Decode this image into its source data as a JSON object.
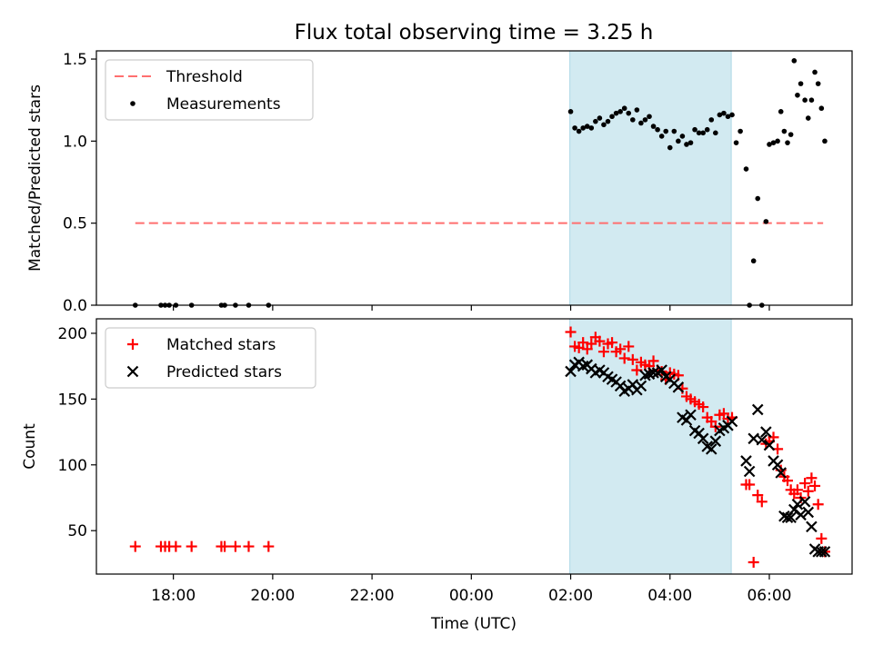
{
  "figure": {
    "title": "Flux total observing time = 3.25 h",
    "xlabel": "Time (UTC)",
    "x_tick_labels": [
      "18:00",
      "20:00",
      "22:00",
      "00:00",
      "02:00",
      "04:00",
      "06:00"
    ]
  },
  "chart_data": [
    {
      "type": "scatter",
      "panel": "top",
      "ylabel": "Matched/Predicted stars",
      "xlim": [
        "16:27",
        "07:40"
      ],
      "ylim": [
        0,
        1.55
      ],
      "y_ticks": [
        0.0,
        0.5,
        1.0,
        1.5
      ],
      "legend": {
        "placement": "top-left",
        "entries": [
          "Threshold",
          "Measurements"
        ]
      },
      "shaded_interval": {
        "from": "01:59",
        "to": "05:14",
        "color": "#add8e6"
      },
      "threshold": {
        "name": "Threshold",
        "y": 0.5,
        "x_from": "17:14",
        "x_to": "07:05",
        "color": "#ff6f6f",
        "style": "dashed"
      },
      "series": [
        {
          "name": "Measurements",
          "color": "#000000",
          "points": [
            [
              "17:14",
              0
            ],
            [
              "17:45",
              0
            ],
            [
              "17:50",
              0
            ],
            [
              "17:55",
              0
            ],
            [
              "18:03",
              0
            ],
            [
              "18:22",
              0
            ],
            [
              "18:58",
              0
            ],
            [
              "19:02",
              0
            ],
            [
              "19:15",
              0
            ],
            [
              "19:31",
              0
            ],
            [
              "19:55",
              0
            ],
            [
              "02:00",
              1.18
            ],
            [
              "02:05",
              1.08
            ],
            [
              "02:10",
              1.06
            ],
            [
              "02:15",
              1.08
            ],
            [
              "02:20",
              1.09
            ],
            [
              "02:25",
              1.08
            ],
            [
              "02:30",
              1.12
            ],
            [
              "02:35",
              1.14
            ],
            [
              "02:40",
              1.1
            ],
            [
              "02:45",
              1.12
            ],
            [
              "02:50",
              1.15
            ],
            [
              "02:55",
              1.17
            ],
            [
              "03:00",
              1.18
            ],
            [
              "03:05",
              1.2
            ],
            [
              "03:10",
              1.17
            ],
            [
              "03:15",
              1.13
            ],
            [
              "03:20",
              1.19
            ],
            [
              "03:25",
              1.11
            ],
            [
              "03:30",
              1.13
            ],
            [
              "03:35",
              1.15
            ],
            [
              "03:40",
              1.09
            ],
            [
              "03:45",
              1.07
            ],
            [
              "03:50",
              1.03
            ],
            [
              "03:55",
              1.06
            ],
            [
              "04:00",
              0.96
            ],
            [
              "04:05",
              1.06
            ],
            [
              "04:10",
              1.0
            ],
            [
              "04:15",
              1.03
            ],
            [
              "04:20",
              0.98
            ],
            [
              "04:25",
              0.99
            ],
            [
              "04:30",
              1.07
            ],
            [
              "04:35",
              1.05
            ],
            [
              "04:40",
              1.05
            ],
            [
              "04:45",
              1.07
            ],
            [
              "04:50",
              1.13
            ],
            [
              "04:55",
              1.05
            ],
            [
              "05:00",
              1.16
            ],
            [
              "05:05",
              1.17
            ],
            [
              "05:10",
              1.15
            ],
            [
              "05:15",
              1.16
            ],
            [
              "05:20",
              0.99
            ],
            [
              "05:25",
              1.06
            ],
            [
              "05:32",
              0.83
            ],
            [
              "05:36",
              0.0
            ],
            [
              "05:41",
              0.27
            ],
            [
              "05:46",
              0.65
            ],
            [
              "05:51",
              0.0
            ],
            [
              "05:56",
              0.51
            ],
            [
              "06:00",
              0.98
            ],
            [
              "06:05",
              0.99
            ],
            [
              "06:10",
              1.0
            ],
            [
              "06:14",
              1.18
            ],
            [
              "06:18",
              1.06
            ],
            [
              "06:22",
              0.99
            ],
            [
              "06:26",
              1.04
            ],
            [
              "06:30",
              1.49
            ],
            [
              "06:34",
              1.28
            ],
            [
              "06:38",
              1.35
            ],
            [
              "06:43",
              1.25
            ],
            [
              "06:47",
              1.14
            ],
            [
              "06:51",
              1.25
            ],
            [
              "06:55",
              1.42
            ],
            [
              "06:59",
              1.35
            ],
            [
              "07:03",
              1.2
            ],
            [
              "07:07",
              1.0
            ]
          ]
        }
      ]
    },
    {
      "type": "scatter",
      "panel": "bottom",
      "ylabel": "Count",
      "xlim": [
        "16:27",
        "07:40"
      ],
      "ylim": [
        17,
        211
      ],
      "y_ticks": [
        50,
        100,
        150,
        200
      ],
      "legend": {
        "placement": "top-left",
        "entries": [
          "Matched stars",
          "Predicted stars"
        ]
      },
      "shaded_interval": {
        "from": "01:59",
        "to": "05:14",
        "color": "#add8e6"
      },
      "series": [
        {
          "name": "Matched stars",
          "marker": "plus",
          "color": "#ff0000",
          "points": [
            [
              "17:14",
              38
            ],
            [
              "17:45",
              38
            ],
            [
              "17:50",
              38
            ],
            [
              "17:55",
              38
            ],
            [
              "18:03",
              38
            ],
            [
              "18:22",
              38
            ],
            [
              "18:58",
              38
            ],
            [
              "19:02",
              38
            ],
            [
              "19:15",
              38
            ],
            [
              "19:31",
              38
            ],
            [
              "19:55",
              38
            ],
            [
              "02:00",
              201
            ],
            [
              "02:05",
              190
            ],
            [
              "02:10",
              189
            ],
            [
              "02:15",
              193
            ],
            [
              "02:20",
              188
            ],
            [
              "02:25",
              192
            ],
            [
              "02:30",
              197
            ],
            [
              "02:35",
              194
            ],
            [
              "02:40",
              186
            ],
            [
              "02:45",
              192
            ],
            [
              "02:50",
              193
            ],
            [
              "02:55",
              186
            ],
            [
              "03:00",
              188
            ],
            [
              "03:05",
              181
            ],
            [
              "03:10",
              190
            ],
            [
              "03:15",
              180
            ],
            [
              "03:20",
              172
            ],
            [
              "03:25",
              178
            ],
            [
              "03:30",
              176
            ],
            [
              "03:35",
              175
            ],
            [
              "03:40",
              179
            ],
            [
              "03:45",
              172
            ],
            [
              "03:50",
              171
            ],
            [
              "03:55",
              165
            ],
            [
              "04:00",
              170
            ],
            [
              "04:05",
              169
            ],
            [
              "04:10",
              168
            ],
            [
              "04:15",
              158
            ],
            [
              "04:20",
              152
            ],
            [
              "04:25",
              150
            ],
            [
              "04:30",
              148
            ],
            [
              "04:35",
              146
            ],
            [
              "04:40",
              144
            ],
            [
              "04:45",
              136
            ],
            [
              "04:50",
              133
            ],
            [
              "04:55",
              129
            ],
            [
              "05:00",
              138
            ],
            [
              "05:05",
              139
            ],
            [
              "05:10",
              135
            ],
            [
              "05:15",
              136
            ],
            [
              "05:32",
              85
            ],
            [
              "05:36",
              85
            ],
            [
              "05:41",
              26
            ],
            [
              "05:46",
              77
            ],
            [
              "05:51",
              72
            ],
            [
              "05:56",
              116
            ],
            [
              "06:00",
              118
            ],
            [
              "06:05",
              121
            ],
            [
              "06:10",
              112
            ],
            [
              "06:14",
              96
            ],
            [
              "06:18",
              91
            ],
            [
              "06:22",
              88
            ],
            [
              "06:26",
              81
            ],
            [
              "06:30",
              78
            ],
            [
              "06:34",
              81
            ],
            [
              "06:38",
              75
            ],
            [
              "06:43",
              86
            ],
            [
              "06:47",
              80
            ],
            [
              "06:51",
              90
            ],
            [
              "06:55",
              84
            ],
            [
              "06:59",
              70
            ],
            [
              "07:03",
              44
            ],
            [
              "07:07",
              34
            ]
          ]
        },
        {
          "name": "Predicted stars",
          "marker": "x",
          "color": "#000000",
          "points": [
            [
              "02:00",
              171
            ],
            [
              "02:05",
              176
            ],
            [
              "02:10",
              178
            ],
            [
              "02:15",
              175
            ],
            [
              "02:20",
              176
            ],
            [
              "02:25",
              173
            ],
            [
              "02:30",
              170
            ],
            [
              "02:35",
              172
            ],
            [
              "02:40",
              170
            ],
            [
              "02:45",
              167
            ],
            [
              "02:50",
              165
            ],
            [
              "02:55",
              163
            ],
            [
              "03:00",
              160
            ],
            [
              "03:05",
              156
            ],
            [
              "03:10",
              158
            ],
            [
              "03:15",
              161
            ],
            [
              "03:20",
              157
            ],
            [
              "03:25",
              160
            ],
            [
              "03:30",
              168
            ],
            [
              "03:35",
              169
            ],
            [
              "03:40",
              170
            ],
            [
              "03:45",
              170
            ],
            [
              "03:50",
              172
            ],
            [
              "03:55",
              167
            ],
            [
              "04:00",
              165
            ],
            [
              "04:05",
              162
            ],
            [
              "04:10",
              159
            ],
            [
              "04:15",
              136
            ],
            [
              "04:20",
              134
            ],
            [
              "04:25",
              138
            ],
            [
              "04:30",
              126
            ],
            [
              "04:35",
              124
            ],
            [
              "04:40",
              120
            ],
            [
              "04:45",
              114
            ],
            [
              "04:50",
              112
            ],
            [
              "04:55",
              118
            ],
            [
              "05:00",
              126
            ],
            [
              "05:05",
              128
            ],
            [
              "05:10",
              130
            ],
            [
              "05:15",
              133
            ],
            [
              "05:32",
              103
            ],
            [
              "05:36",
              95
            ],
            [
              "05:41",
              120
            ],
            [
              "05:46",
              142
            ],
            [
              "05:51",
              119
            ],
            [
              "05:56",
              125
            ],
            [
              "06:00",
              115
            ],
            [
              "06:05",
              103
            ],
            [
              "06:10",
              100
            ],
            [
              "06:14",
              94
            ],
            [
              "06:18",
              61
            ],
            [
              "06:22",
              60
            ],
            [
              "06:26",
              60
            ],
            [
              "06:30",
              66
            ],
            [
              "06:34",
              70
            ],
            [
              "06:38",
              62
            ],
            [
              "06:43",
              72
            ],
            [
              "06:47",
              64
            ],
            [
              "06:51",
              53
            ],
            [
              "06:55",
              36
            ],
            [
              "06:59",
              34
            ],
            [
              "07:03",
              34
            ],
            [
              "07:07",
              34
            ]
          ]
        }
      ]
    }
  ]
}
